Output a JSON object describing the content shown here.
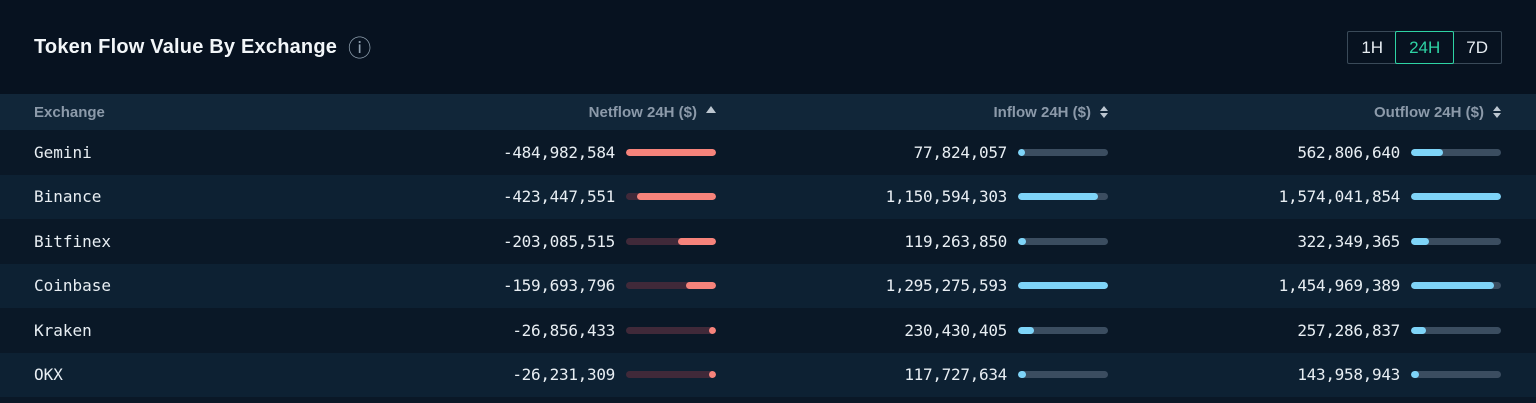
{
  "panel": {
    "title": "Token Flow Value By Exchange",
    "info_icon_glyph": "ⓘ",
    "time_filters": [
      {
        "label": "1H",
        "active": false
      },
      {
        "label": "24H",
        "active": true
      },
      {
        "label": "7D",
        "active": false
      }
    ]
  },
  "table": {
    "columns": [
      {
        "label": "Exchange",
        "align": "left",
        "sort": "none"
      },
      {
        "label": "Netflow 24H ($)",
        "align": "right",
        "sort": "asc"
      },
      {
        "label": "Inflow 24H ($)",
        "align": "right",
        "sort": "both"
      },
      {
        "label": "Outflow 24H ($)",
        "align": "right",
        "sort": "both"
      }
    ],
    "rows": [
      {
        "exchange": "Gemini",
        "netflow": "-484,982,584",
        "inflow": "77,824,057",
        "outflow": "562,806,640",
        "netflow_value": -484982584,
        "inflow_value": 77824057,
        "outflow_value": 562806640
      },
      {
        "exchange": "Binance",
        "netflow": "-423,447,551",
        "inflow": "1,150,594,303",
        "outflow": "1,574,041,854",
        "netflow_value": -423447551,
        "inflow_value": 1150594303,
        "outflow_value": 1574041854
      },
      {
        "exchange": "Bitfinex",
        "netflow": "-203,085,515",
        "inflow": "119,263,850",
        "outflow": "322,349,365",
        "netflow_value": -203085515,
        "inflow_value": 119263850,
        "outflow_value": 322349365
      },
      {
        "exchange": "Coinbase",
        "netflow": "-159,693,796",
        "inflow": "1,295,275,593",
        "outflow": "1,454,969,389",
        "netflow_value": -159693796,
        "inflow_value": 1295275593,
        "outflow_value": 1454969389
      },
      {
        "exchange": "Kraken",
        "netflow": "-26,856,433",
        "inflow": "230,430,405",
        "outflow": "257,286,837",
        "netflow_value": -26856433,
        "inflow_value": 230430405,
        "outflow_value": 257286837
      },
      {
        "exchange": "OKX",
        "netflow": "-26,231,309",
        "inflow": "117,727,634",
        "outflow": "143,958,943",
        "netflow_value": -26231309,
        "inflow_value": 117727634,
        "outflow_value": 143958943
      }
    ]
  },
  "colors": {
    "accent_teal": "#2ed3a4",
    "netflow_fill": "#f6837b",
    "netflow_track": "#402939",
    "flow_fill": "#7ed4f8",
    "flow_track": "#3b4d60"
  }
}
